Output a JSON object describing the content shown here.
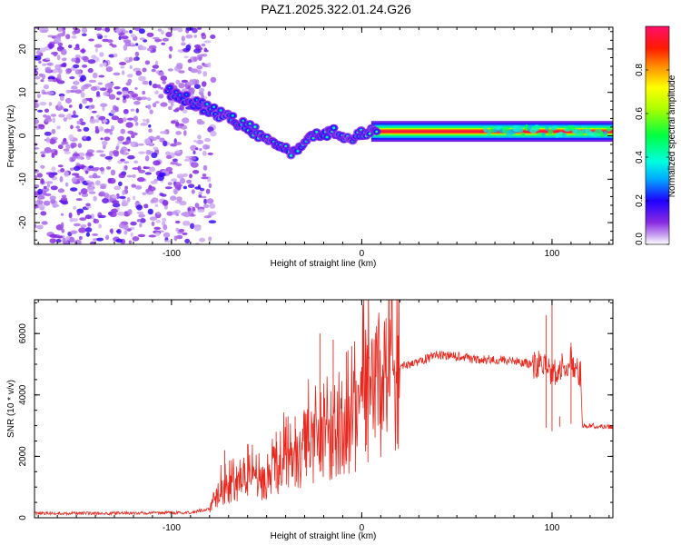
{
  "page_title": "PAZ1.2025.322.01.24.G26",
  "chart_data": [
    {
      "type": "heatmap",
      "title": "PAZ1.2025.322.01.24.G26",
      "xlabel": "Height of straight line (km)",
      "ylabel": "Frequency (Hz)",
      "xlim": [
        -172,
        132
      ],
      "ylim": [
        -25,
        25
      ],
      "x_ticks": [
        -100,
        0,
        100
      ],
      "y_ticks": [
        -20,
        -10,
        0,
        10,
        20
      ],
      "colorbar": {
        "label": "Normalized spectral amplitude",
        "range": [
          0,
          1
        ],
        "ticks": [
          0.0,
          0.2,
          0.4,
          0.6,
          0.8
        ],
        "tick_labels": [
          "0.0",
          "0.2",
          "0.4",
          "0.6",
          "0.8"
        ],
        "colormap": "rainbow (violet-blue-cyan-green-yellow-red-pink)"
      },
      "features": [
        {
          "name": "noise-region",
          "x_range": [
            -172,
            -82
          ],
          "freq_range": [
            -25,
            25
          ],
          "amplitude": "0.0-0.2"
        },
        {
          "name": "signal-track",
          "points": [
            [
              -100,
              10
            ],
            [
              -85,
              7
            ],
            [
              -75,
              5
            ],
            [
              -60,
              2
            ],
            [
              -45,
              -2
            ],
            [
              -35,
              -4
            ],
            [
              -25,
              0
            ],
            [
              -15,
              1
            ],
            [
              -5,
              -0.5
            ],
            [
              5,
              1.5
            ],
            [
              40,
              1
            ],
            [
              80,
              1
            ],
            [
              100,
              1
            ],
            [
              132,
              1
            ]
          ],
          "amplitude": "0.2-1.0"
        }
      ]
    },
    {
      "type": "line",
      "xlabel": "Height of straight line (km)",
      "ylabel": "SNR (10 * v/v)",
      "xlim": [
        -172,
        132
      ],
      "ylim": [
        0,
        7100
      ],
      "x_ticks": [
        -100,
        0,
        100
      ],
      "y_ticks": [
        0,
        2000,
        4000,
        6000
      ],
      "series": [
        {
          "name": "SNR",
          "color": "#e8281e",
          "x": [
            -172,
            -140,
            -110,
            -90,
            -80,
            -75,
            -70,
            -65,
            -60,
            -55,
            -50,
            -45,
            -40,
            -35,
            -30,
            -25,
            -20,
            -15,
            -10,
            -5,
            0,
            5,
            10,
            15,
            20,
            30,
            40,
            50,
            60,
            70,
            80,
            90,
            95,
            100,
            105,
            110,
            115,
            116,
            120,
            132
          ],
          "values": [
            150,
            140,
            160,
            170,
            300,
            800,
            1000,
            1100,
            1200,
            1100,
            1300,
            1600,
            1700,
            1700,
            2200,
            2500,
            2500,
            2800,
            3000,
            3200,
            3400,
            3900,
            4300,
            4600,
            4900,
            5100,
            5300,
            5250,
            5150,
            5150,
            5100,
            5000,
            5000,
            4700,
            5000,
            5100,
            4600,
            3000,
            3000,
            2950
          ]
        }
      ],
      "spikes": [
        {
          "x": -72,
          "value": 2200
        },
        {
          "x": -60,
          "value": 2400
        },
        {
          "x": -45,
          "value": 2800
        },
        {
          "x": -35,
          "value": 3300
        },
        {
          "x": -22,
          "value": 6000
        },
        {
          "x": -15,
          "value": 5800
        },
        {
          "x": -8,
          "value": 5400
        },
        {
          "x": 2,
          "value": 5500
        },
        {
          "x": 100,
          "value": 7000
        },
        {
          "x": 97,
          "value": 6600
        },
        {
          "x": 104,
          "value": 3300
        },
        {
          "x": 110,
          "value": 5700
        }
      ]
    }
  ]
}
